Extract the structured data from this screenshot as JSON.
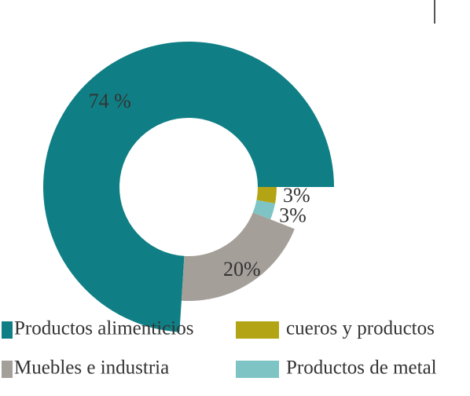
{
  "chart_data": {
    "type": "donut",
    "categories": [
      "Productos alimenticios",
      "Muebles e industria",
      "Productos de metal",
      "cueros y productos"
    ],
    "values": [
      74,
      20,
      3,
      3
    ],
    "value_labels": [
      "74 %",
      "20%",
      "3%",
      "3%"
    ],
    "colors": [
      "#0f7f85",
      "#a49f99",
      "#7fc4c4",
      "#b3a416"
    ],
    "legend": "bottom"
  }
}
